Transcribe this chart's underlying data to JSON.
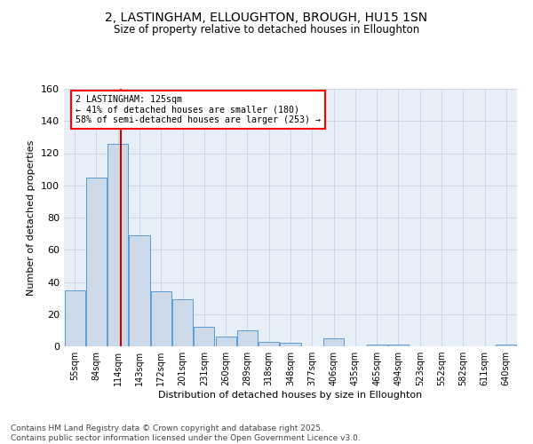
{
  "title1": "2, LASTINGHAM, ELLOUGHTON, BROUGH, HU15 1SN",
  "title2": "Size of property relative to detached houses in Elloughton",
  "xlabel": "Distribution of detached houses by size in Elloughton",
  "ylabel": "Number of detached properties",
  "bar_labels": [
    "55sqm",
    "84sqm",
    "114sqm",
    "143sqm",
    "172sqm",
    "201sqm",
    "231sqm",
    "260sqm",
    "289sqm",
    "318sqm",
    "348sqm",
    "377sqm",
    "406sqm",
    "435sqm",
    "465sqm",
    "494sqm",
    "523sqm",
    "552sqm",
    "582sqm",
    "611sqm",
    "640sqm"
  ],
  "bar_values": [
    35,
    105,
    126,
    69,
    34,
    29,
    12,
    6,
    10,
    3,
    2,
    0,
    5,
    0,
    1,
    1,
    0,
    0,
    0,
    0,
    1
  ],
  "bar_color": "#ccd9e8",
  "bar_edgecolor": "#5b9bd5",
  "red_line_color": "#cc0000",
  "annotation_text": "2 LASTINGHAM: 125sqm\n← 41% of detached houses are smaller (180)\n58% of semi-detached houses are larger (253) →",
  "annotation_box_color": "white",
  "annotation_box_edgecolor": "red",
  "grid_color": "#c8d8e8",
  "background_color": "#e8eef5",
  "footer_line1": "Contains HM Land Registry data © Crown copyright and database right 2025.",
  "footer_line2": "Contains public sector information licensed under the Open Government Licence v3.0.",
  "ylim": [
    0,
    160
  ],
  "yticks": [
    0,
    20,
    40,
    60,
    80,
    100,
    120,
    140,
    160
  ],
  "red_line_bin": 2
}
